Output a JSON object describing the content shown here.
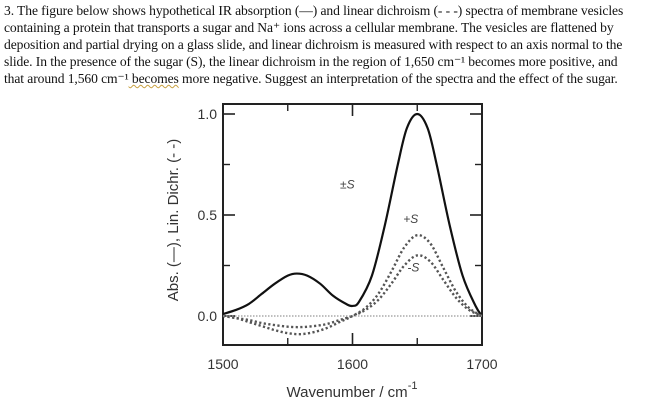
{
  "question": {
    "lines": [
      "3. The figure below shows hypothetical IR absorption (—) and linear dichroism (- - -) spectra of membrane vesicles",
      "containing a protein that transports a sugar and Na⁺ ions across a cellular membrane. The vesicles are flattened by",
      "deposition and partial drying on a glass slide, and linear dichroism is measured with respect to an axis normal to the",
      "slide. In the presence of the sugar (S), the linear dichroism in the region of 1,650 cm⁻¹ becomes more positive, and"
    ],
    "last_line_pre": "that around 1,560 cm⁻¹",
    "last_line_wavy": " becomes",
    "last_line_post": " more negative. Suggest an interpretation of the spectra and the effect of the sugar."
  },
  "chart_data": {
    "type": "line",
    "title": "",
    "xlabel": "Wavenumber / cm-1",
    "ylabel": "Abs. (—), Lin. Dichr. (- -)",
    "xlim": [
      1500,
      1700
    ],
    "ylim": [
      -0.12,
      1.04
    ],
    "x_ticks": [
      1500,
      1600,
      1700
    ],
    "x_tick_labels": [
      "1500",
      "1600",
      "1700"
    ],
    "x_minor_ticks": [
      1550,
      1650
    ],
    "y_ticks": [
      0.0,
      0.5,
      1.0
    ],
    "y_tick_labels": [
      "0.0",
      "0.5",
      "1.0"
    ],
    "y_minor_ticks": [
      0.25,
      0.75
    ],
    "grid": false,
    "legend": "none",
    "annotations": [
      {
        "text": "±S",
        "x": 1596,
        "y": 0.63
      },
      {
        "text": "+S",
        "x": 1645,
        "y": 0.46
      },
      {
        "text": "-S",
        "x": 1647,
        "y": 0.22
      }
    ],
    "series": [
      {
        "name": "Absorption (±S)",
        "style": "solid",
        "x": [
          1500,
          1510,
          1520,
          1530,
          1540,
          1550,
          1557,
          1565,
          1575,
          1585,
          1595,
          1600,
          1605,
          1615,
          1625,
          1635,
          1642,
          1650,
          1658,
          1665,
          1675,
          1685,
          1695,
          1700
        ],
        "y": [
          0.01,
          0.03,
          0.06,
          0.11,
          0.16,
          0.2,
          0.21,
          0.2,
          0.16,
          0.1,
          0.06,
          0.05,
          0.07,
          0.2,
          0.45,
          0.75,
          0.93,
          1.0,
          0.93,
          0.75,
          0.45,
          0.2,
          0.05,
          0.0
        ]
      },
      {
        "name": "Linear dichroism +S",
        "style": "dotted",
        "x": [
          1500,
          1510,
          1520,
          1530,
          1540,
          1550,
          1560,
          1570,
          1580,
          1590,
          1600,
          1610,
          1620,
          1630,
          1640,
          1650,
          1660,
          1670,
          1680,
          1690,
          1700
        ],
        "y": [
          0.0,
          -0.01,
          -0.03,
          -0.05,
          -0.07,
          -0.085,
          -0.09,
          -0.08,
          -0.06,
          -0.03,
          0.0,
          0.04,
          0.11,
          0.22,
          0.34,
          0.4,
          0.36,
          0.24,
          0.12,
          0.04,
          0.0
        ]
      },
      {
        "name": "Linear dichroism -S",
        "style": "dotted",
        "x": [
          1500,
          1510,
          1520,
          1530,
          1540,
          1550,
          1560,
          1570,
          1580,
          1590,
          1600,
          1610,
          1620,
          1630,
          1640,
          1650,
          1660,
          1670,
          1680,
          1690,
          1700
        ],
        "y": [
          0.0,
          -0.01,
          -0.02,
          -0.035,
          -0.045,
          -0.053,
          -0.055,
          -0.05,
          -0.04,
          -0.02,
          0.0,
          0.03,
          0.08,
          0.16,
          0.25,
          0.3,
          0.27,
          0.18,
          0.09,
          0.03,
          0.0
        ]
      },
      {
        "name": "Baseline",
        "style": "dotted-light",
        "x": [
          1500,
          1700
        ],
        "y": [
          0.0,
          0.0
        ]
      }
    ]
  }
}
